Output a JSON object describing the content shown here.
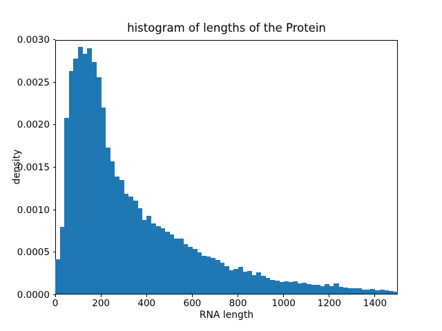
{
  "chart": {
    "title": "histogram of lengths of the Protein",
    "xlabel": "RNA length",
    "ylabel": "density"
  },
  "chart_data": {
    "type": "bar",
    "subtype": "histogram",
    "title": "histogram of lengths of the Protein",
    "xlabel": "RNA length",
    "ylabel": "density",
    "bar_color": "#1f77b4",
    "grid": false,
    "legend": false,
    "xlim": [
      0,
      1500
    ],
    "ylim": [
      0,
      0.003
    ],
    "bin_start": 0,
    "bin_width": 20,
    "x_tick_values": [
      0,
      200,
      400,
      600,
      800,
      1000,
      1200,
      1400
    ],
    "x_tick_labels": [
      "0",
      "200",
      "400",
      "600",
      "800",
      "1000",
      "1200",
      "1400"
    ],
    "y_tick_values": [
      0.0,
      0.0005,
      0.001,
      0.0015,
      0.002,
      0.0025,
      0.003
    ],
    "y_tick_labels": [
      "0.0000",
      "0.0005",
      "0.0010",
      "0.0015",
      "0.0020",
      "0.0025",
      "0.0030"
    ],
    "values": [
      0.00041,
      0.00079,
      0.00207,
      0.00262,
      0.00277,
      0.00291,
      0.00283,
      0.00289,
      0.00273,
      0.00255,
      0.00219,
      0.00172,
      0.00156,
      0.00138,
      0.00134,
      0.00118,
      0.00115,
      0.0011,
      0.00101,
      0.00087,
      0.00092,
      0.00083,
      0.0008,
      0.00077,
      0.00073,
      0.0007,
      0.00065,
      0.00065,
      0.00059,
      0.00055,
      0.00053,
      0.00049,
      0.00045,
      0.00044,
      0.00042,
      0.0004,
      0.00037,
      0.00033,
      0.00028,
      0.00029,
      0.00032,
      0.00026,
      0.00027,
      0.00022,
      0.00025,
      0.00021,
      0.00019,
      0.000165,
      0.000155,
      0.00014,
      0.000148,
      0.00014,
      0.000148,
      0.000126,
      0.000132,
      0.000118,
      0.000105,
      0.000105,
      9.1e-05,
      0.000113,
      9.1e-05,
      0.000126,
      8e-05,
      7.5e-05,
      6.9e-05,
      6.4e-05,
      6.4e-05,
      5.3e-05,
      5e-05,
      5.8e-05,
      4.5e-05,
      5.3e-05,
      4e-05,
      3.4e-05,
      2.6e-05
    ]
  }
}
